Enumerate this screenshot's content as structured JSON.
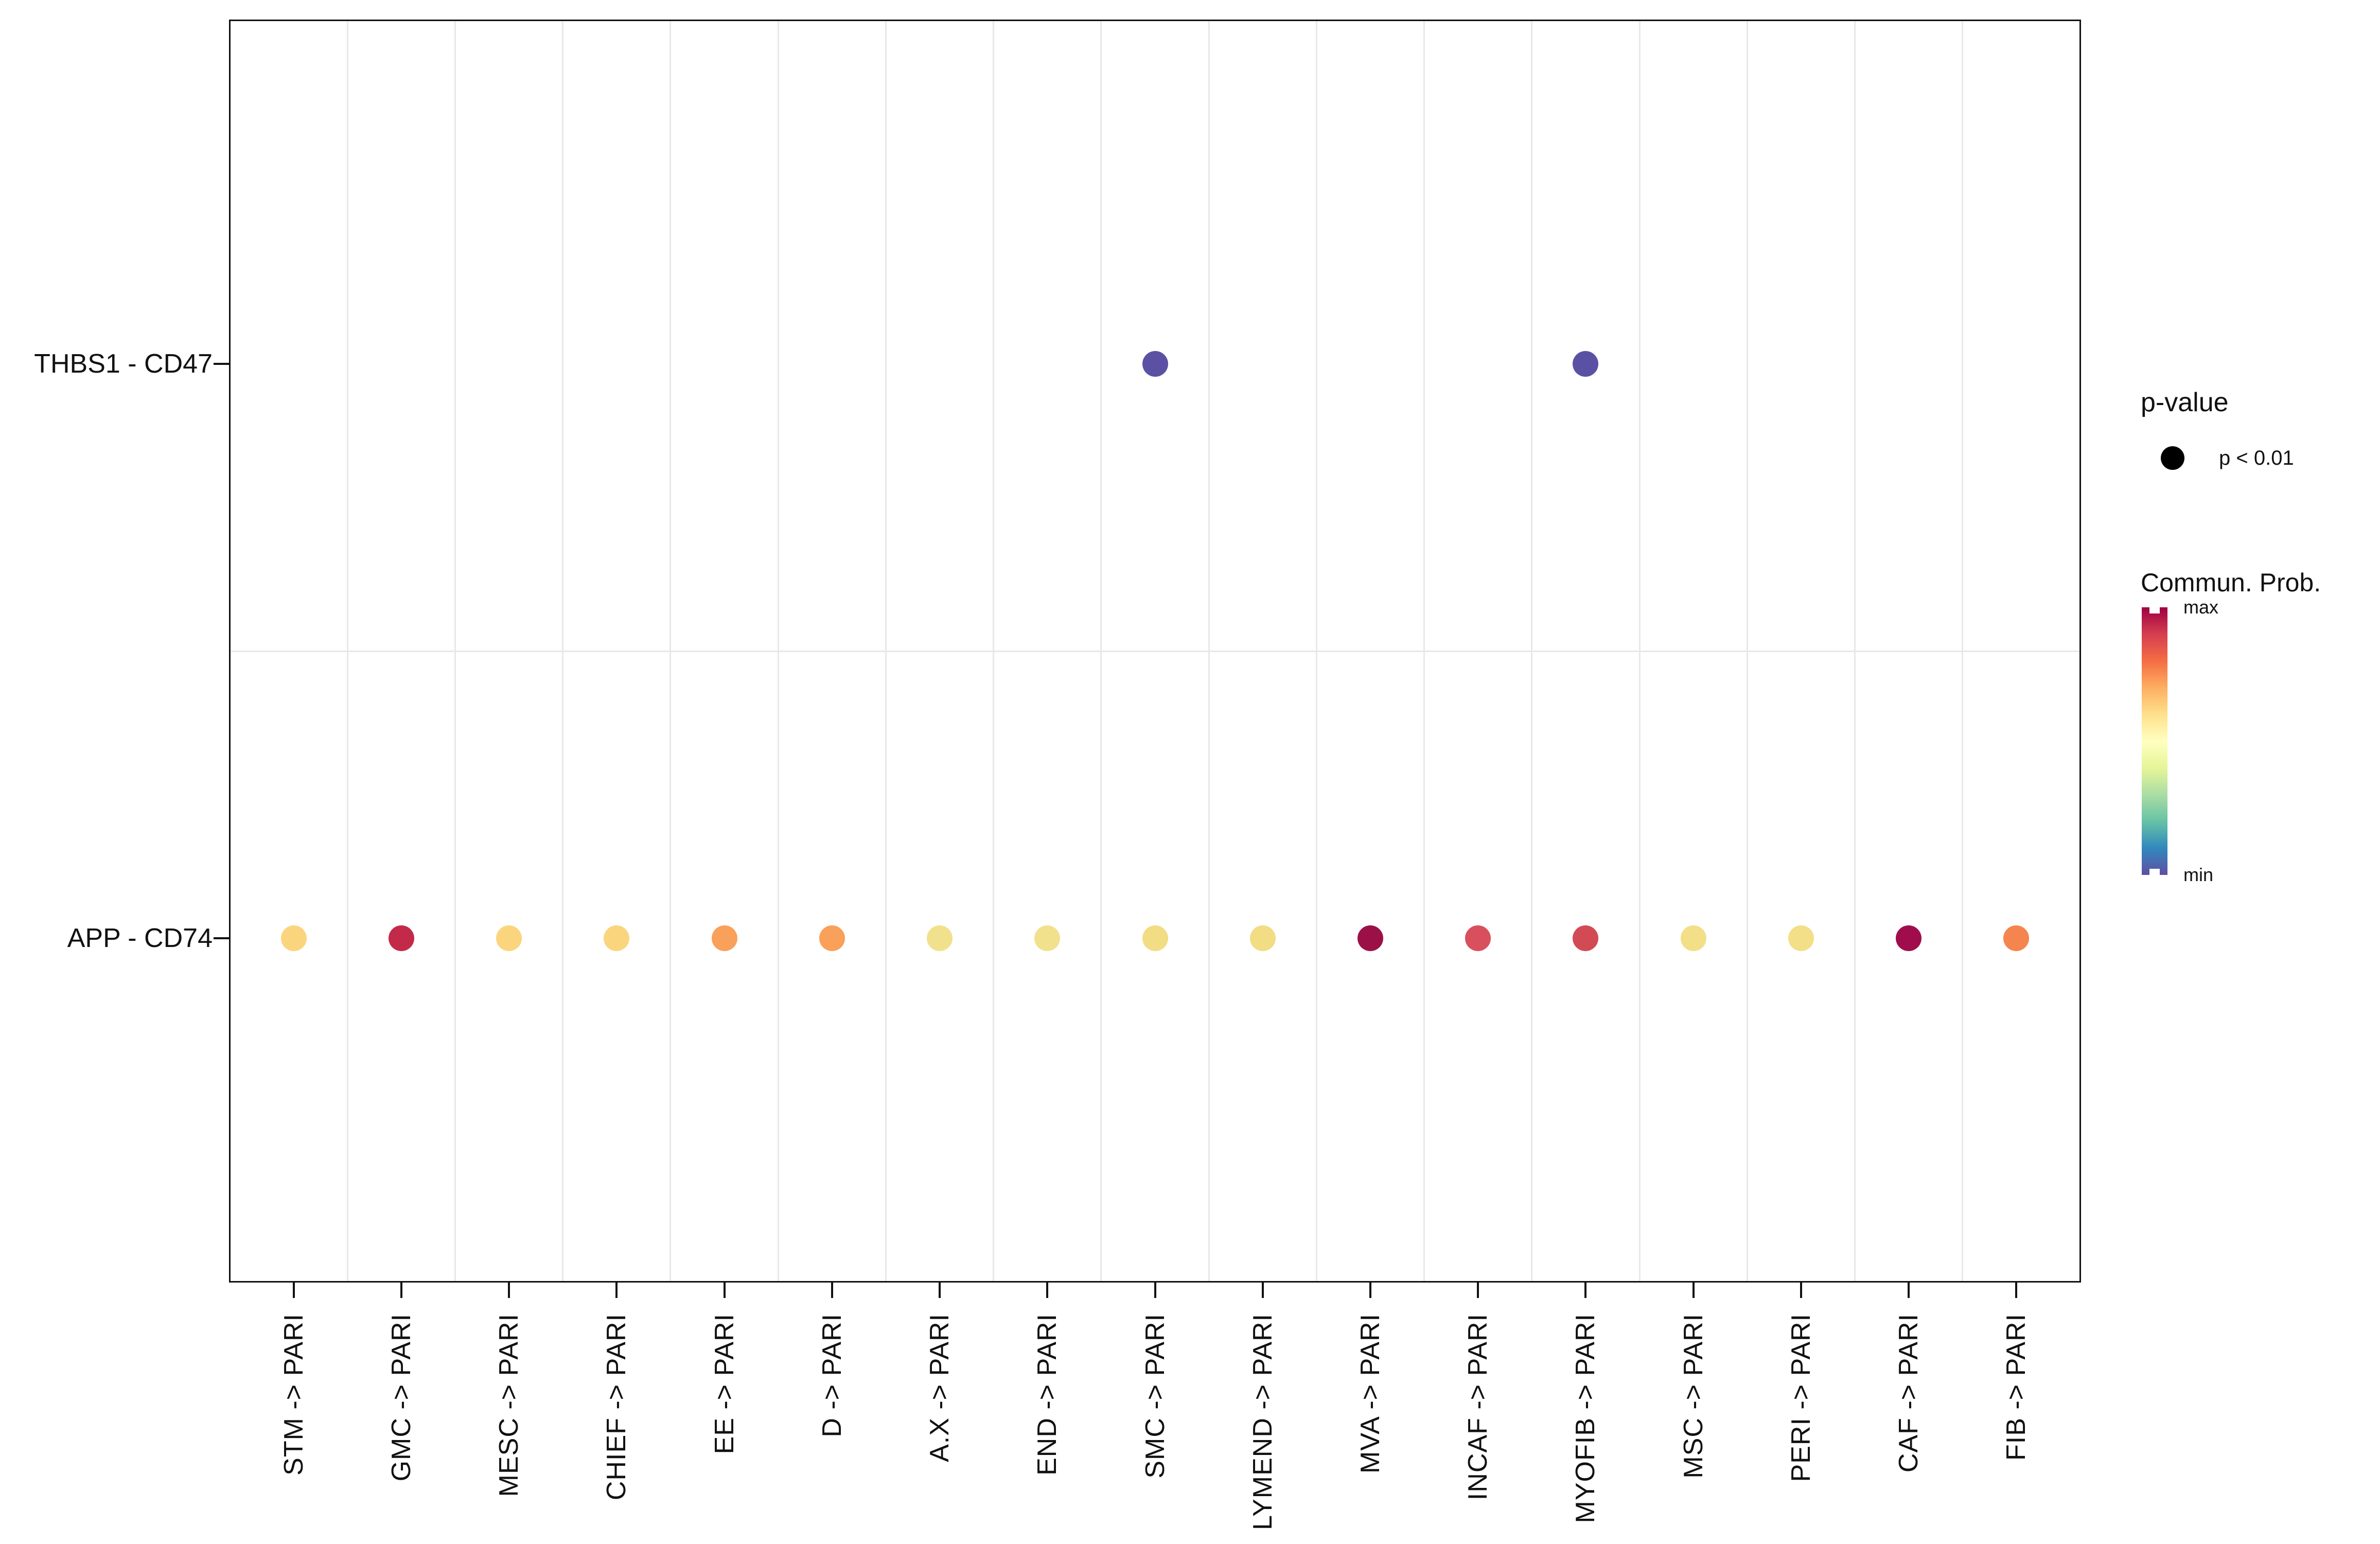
{
  "chart_data": {
    "type": "scatter",
    "title": "",
    "x_categories": [
      "STM -> PARI",
      "GMC -> PARI",
      "MESC -> PARI",
      "CHIEF -> PARI",
      "EE -> PARI",
      "D -> PARI",
      "A.X -> PARI",
      "END -> PARI",
      "SMC -> PARI",
      "LYMEND -> PARI",
      "MVA -> PARI",
      "INCAF -> PARI",
      "MYOFIB -> PARI",
      "MSC -> PARI",
      "PERI -> PARI",
      "CAF -> PARI",
      "FIB -> PARI"
    ],
    "y_categories": [
      "THBS1 - CD47",
      "APP - CD74"
    ],
    "color_encoding": "Commun. Prob. (Spectral reversed: purple = min, dark red = max)",
    "size_encoding": "p-value (all plotted dots: p < 0.01)",
    "legend_position": "right",
    "grid": "light vertical lines between columns and one horizontal line between rows",
    "points": [
      {
        "x": "SMC -> PARI",
        "y": "THBS1 - CD47",
        "color": "#5B51A4",
        "prob_level": "min"
      },
      {
        "x": "MYOFIB -> PARI",
        "y": "THBS1 - CD47",
        "color": "#5B51A4",
        "prob_level": "min"
      },
      {
        "x": "STM -> PARI",
        "y": "APP - CD74",
        "color": "#FBD57E",
        "prob_level": "mid"
      },
      {
        "x": "GMC -> PARI",
        "y": "APP - CD74",
        "color": "#C32A49",
        "prob_level": "high"
      },
      {
        "x": "MESC -> PARI",
        "y": "APP - CD74",
        "color": "#FBD57E",
        "prob_level": "mid"
      },
      {
        "x": "CHIEF -> PARI",
        "y": "APP - CD74",
        "color": "#FBD57E",
        "prob_level": "mid"
      },
      {
        "x": "EE -> PARI",
        "y": "APP - CD74",
        "color": "#F9A05B",
        "prob_level": "mid-high"
      },
      {
        "x": "D -> PARI",
        "y": "APP - CD74",
        "color": "#F9A05B",
        "prob_level": "mid-high"
      },
      {
        "x": "A.X -> PARI",
        "y": "APP - CD74",
        "color": "#F2E18C",
        "prob_level": "mid"
      },
      {
        "x": "END -> PARI",
        "y": "APP - CD74",
        "color": "#F2E18C",
        "prob_level": "mid"
      },
      {
        "x": "SMC -> PARI",
        "y": "APP - CD74",
        "color": "#F2DC84",
        "prob_level": "mid"
      },
      {
        "x": "LYMEND -> PARI",
        "y": "APP - CD74",
        "color": "#F2DC84",
        "prob_level": "mid"
      },
      {
        "x": "MVA -> PARI",
        "y": "APP - CD74",
        "color": "#9C1048",
        "prob_level": "max"
      },
      {
        "x": "INCAF -> PARI",
        "y": "APP - CD74",
        "color": "#D8505C",
        "prob_level": "high"
      },
      {
        "x": "MYOFIB -> PARI",
        "y": "APP - CD74",
        "color": "#D24A54",
        "prob_level": "high"
      },
      {
        "x": "MSC -> PARI",
        "y": "APP - CD74",
        "color": "#F2DF88",
        "prob_level": "mid"
      },
      {
        "x": "PERI -> PARI",
        "y": "APP - CD74",
        "color": "#F2DF88",
        "prob_level": "mid"
      },
      {
        "x": "CAF -> PARI",
        "y": "APP - CD74",
        "color": "#A00D4C",
        "prob_level": "max"
      },
      {
        "x": "FIB -> PARI",
        "y": "APP - CD74",
        "color": "#F4854E",
        "prob_level": "mid-high"
      }
    ]
  },
  "legend": {
    "pvalue_title": "p-value",
    "pvalue_item": "p < 0.01",
    "pvalue_dot_color": "#000000",
    "colorbar_title": "Commun. Prob.",
    "colorbar_max_label": "max",
    "colorbar_min_label": "min",
    "gradient_bottom_to_top": [
      "#5E4FA2",
      "#3288BD",
      "#66C2A5",
      "#ABDDA4",
      "#E6F598",
      "#FFFFBF",
      "#FEE08B",
      "#FDAE61",
      "#F46D43",
      "#D53E4F",
      "#9E0142"
    ]
  }
}
